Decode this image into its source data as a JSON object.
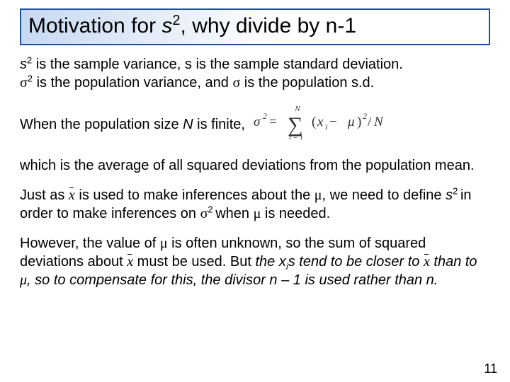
{
  "title": {
    "prefix": "Motivation for ",
    "s": "s",
    "sup": "2",
    "suffix": ", why divide by n-1"
  },
  "p1": {
    "t1": "s",
    "t2": "2",
    "t3": " is the sample variance, s is the sample standard deviation.",
    "t4": "σ",
    "t5": "2",
    "t6": "  is the population variance, and ",
    "t7": "σ",
    "t8": " is the population s.d."
  },
  "p2": {
    "t1": "When the population size ",
    "t2": "N",
    "t3": " is finite,"
  },
  "formula": {
    "lhs_base": "σ",
    "lhs_sup": "2",
    "eq": " = ",
    "sum_top": "N",
    "sum_bottom_i": "i",
    "sum_bottom_eq": " = 1",
    "open": "(",
    "xi_x": "x",
    "xi_i": "i",
    "minus": " − ",
    "mu": "μ",
    "close": ")",
    "close_sup": "2",
    "slashN": "/N",
    "font_family": "Times New Roman, serif",
    "text_color": "#333333"
  },
  "p3": {
    "t1": "which is the average of all squared deviations from the population mean."
  },
  "p4": {
    "t1": "Just as ",
    "xbar1": "x",
    "t2": " is used to make inferences about the ",
    "mu1": "μ",
    "t3": ", we need to define ",
    "s": "s",
    "s_sup": "2 ",
    "t4": "in order to make inferences on ",
    "sigma": "σ",
    "sigma_sup": "2 ",
    "t5": "when ",
    "mu2": "μ",
    "t6": " is needed."
  },
  "p5": {
    "t1": "However, the value of ",
    "mu1": "μ",
    "t2": " is often unknown, so the sum of squared deviations about ",
    "xbar": "x",
    "t3": " must be used. But ",
    "ital1": "the x",
    "sub_i": "i",
    "ital2": "s tend to be closer to ",
    "xbar2": "x",
    "ital3": " than to ",
    "mu2": "μ",
    "ital4": ", so to compensate for this, the divisor n – 1 is used rather than n."
  },
  "page_number": "11",
  "colors": {
    "title_border": "#1f4e9c",
    "title_grad_start": "#c7d9f2",
    "title_grad_end": "#ffffff",
    "text": "#000000",
    "background": "#ffffff"
  },
  "fonts": {
    "body": "Arial",
    "symbols": "Times New Roman",
    "title_size_pt": 30,
    "body_size_pt": 20
  }
}
